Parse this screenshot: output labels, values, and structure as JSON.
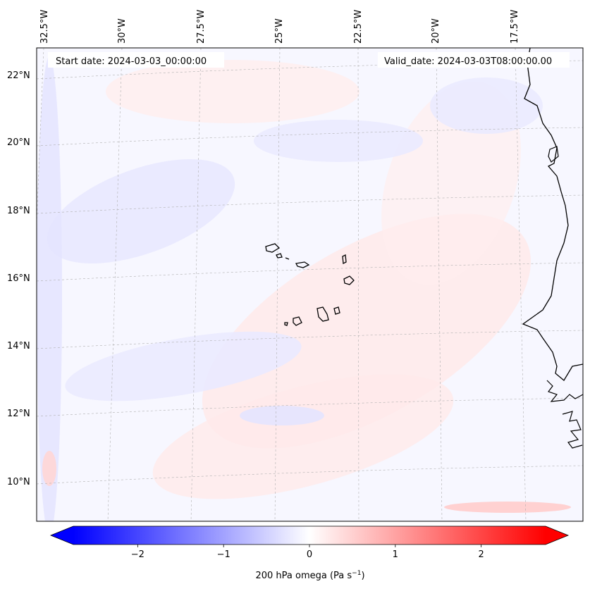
{
  "map": {
    "start_date": "Start date: 2024-03-03_00:00:00",
    "valid_date": "Valid_date: 2024-03-03T08:00:00.00",
    "lon_labels": [
      "32.5°W",
      "30°W",
      "27.5°W",
      "25°W",
      "22.5°W",
      "20°W",
      "17.5°W"
    ],
    "lat_labels": [
      "22°N",
      "20°N",
      "18°N",
      "16°N",
      "14°N",
      "12°N",
      "10°N"
    ],
    "field": "200 hPa omega",
    "coastline_color": "#000000",
    "gridline_color": "#b0b0b0"
  },
  "colorbar": {
    "label": "200 hPa omega (Pa s",
    "label_exp": "−1",
    "label_close": ")",
    "ticks": [
      "−2",
      "−1",
      "0",
      "1",
      "2"
    ],
    "tick_values": [
      -2,
      -1,
      0,
      1,
      2
    ],
    "range": [
      -2.75,
      2.75
    ],
    "extend": "both",
    "colormap": "bwr",
    "min_color": "#0000ff",
    "mid_color": "#ffffff",
    "max_color": "#ff0000"
  }
}
